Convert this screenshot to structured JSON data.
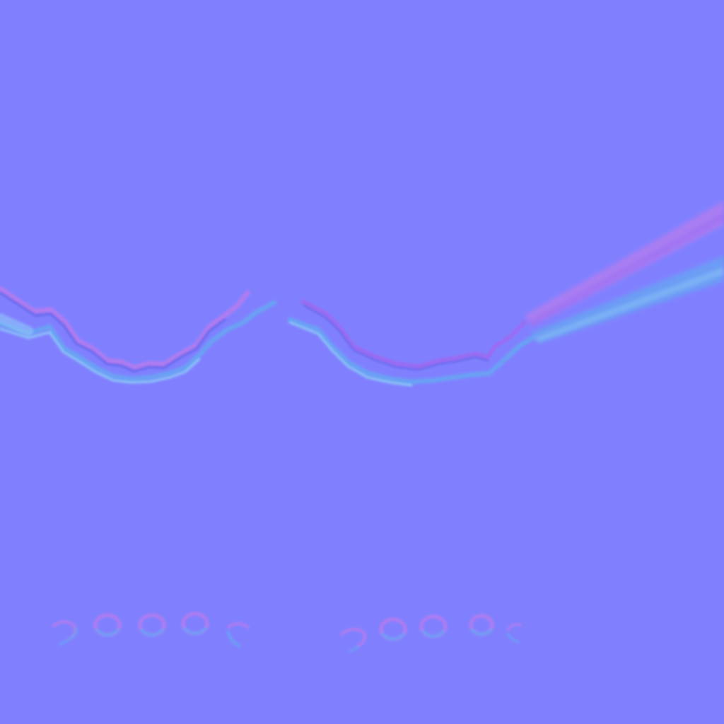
{
  "texture": {
    "kind": "tangent-space normal map",
    "colors": {
      "base": "#8080ff",
      "lit_upper": "#b07cf0",
      "lit_upper_deep": "#9a6cf2",
      "lit_lower": "#6aa0f4",
      "lit_lower_pale": "#8ec8f6",
      "rim_dark": "#6a6af0",
      "highlight": "#d8a0ff"
    },
    "elements": {
      "strap_left": "strap-left-stitched-edge",
      "strap_right": "strap-right-stitched-edge",
      "ribbon": "diagonal-ribbon-band",
      "row_left": "eyelet-row-left",
      "row_right": "eyelet-row-right"
    },
    "eyelet_counts": {
      "left": 5,
      "right": 5
    }
  }
}
